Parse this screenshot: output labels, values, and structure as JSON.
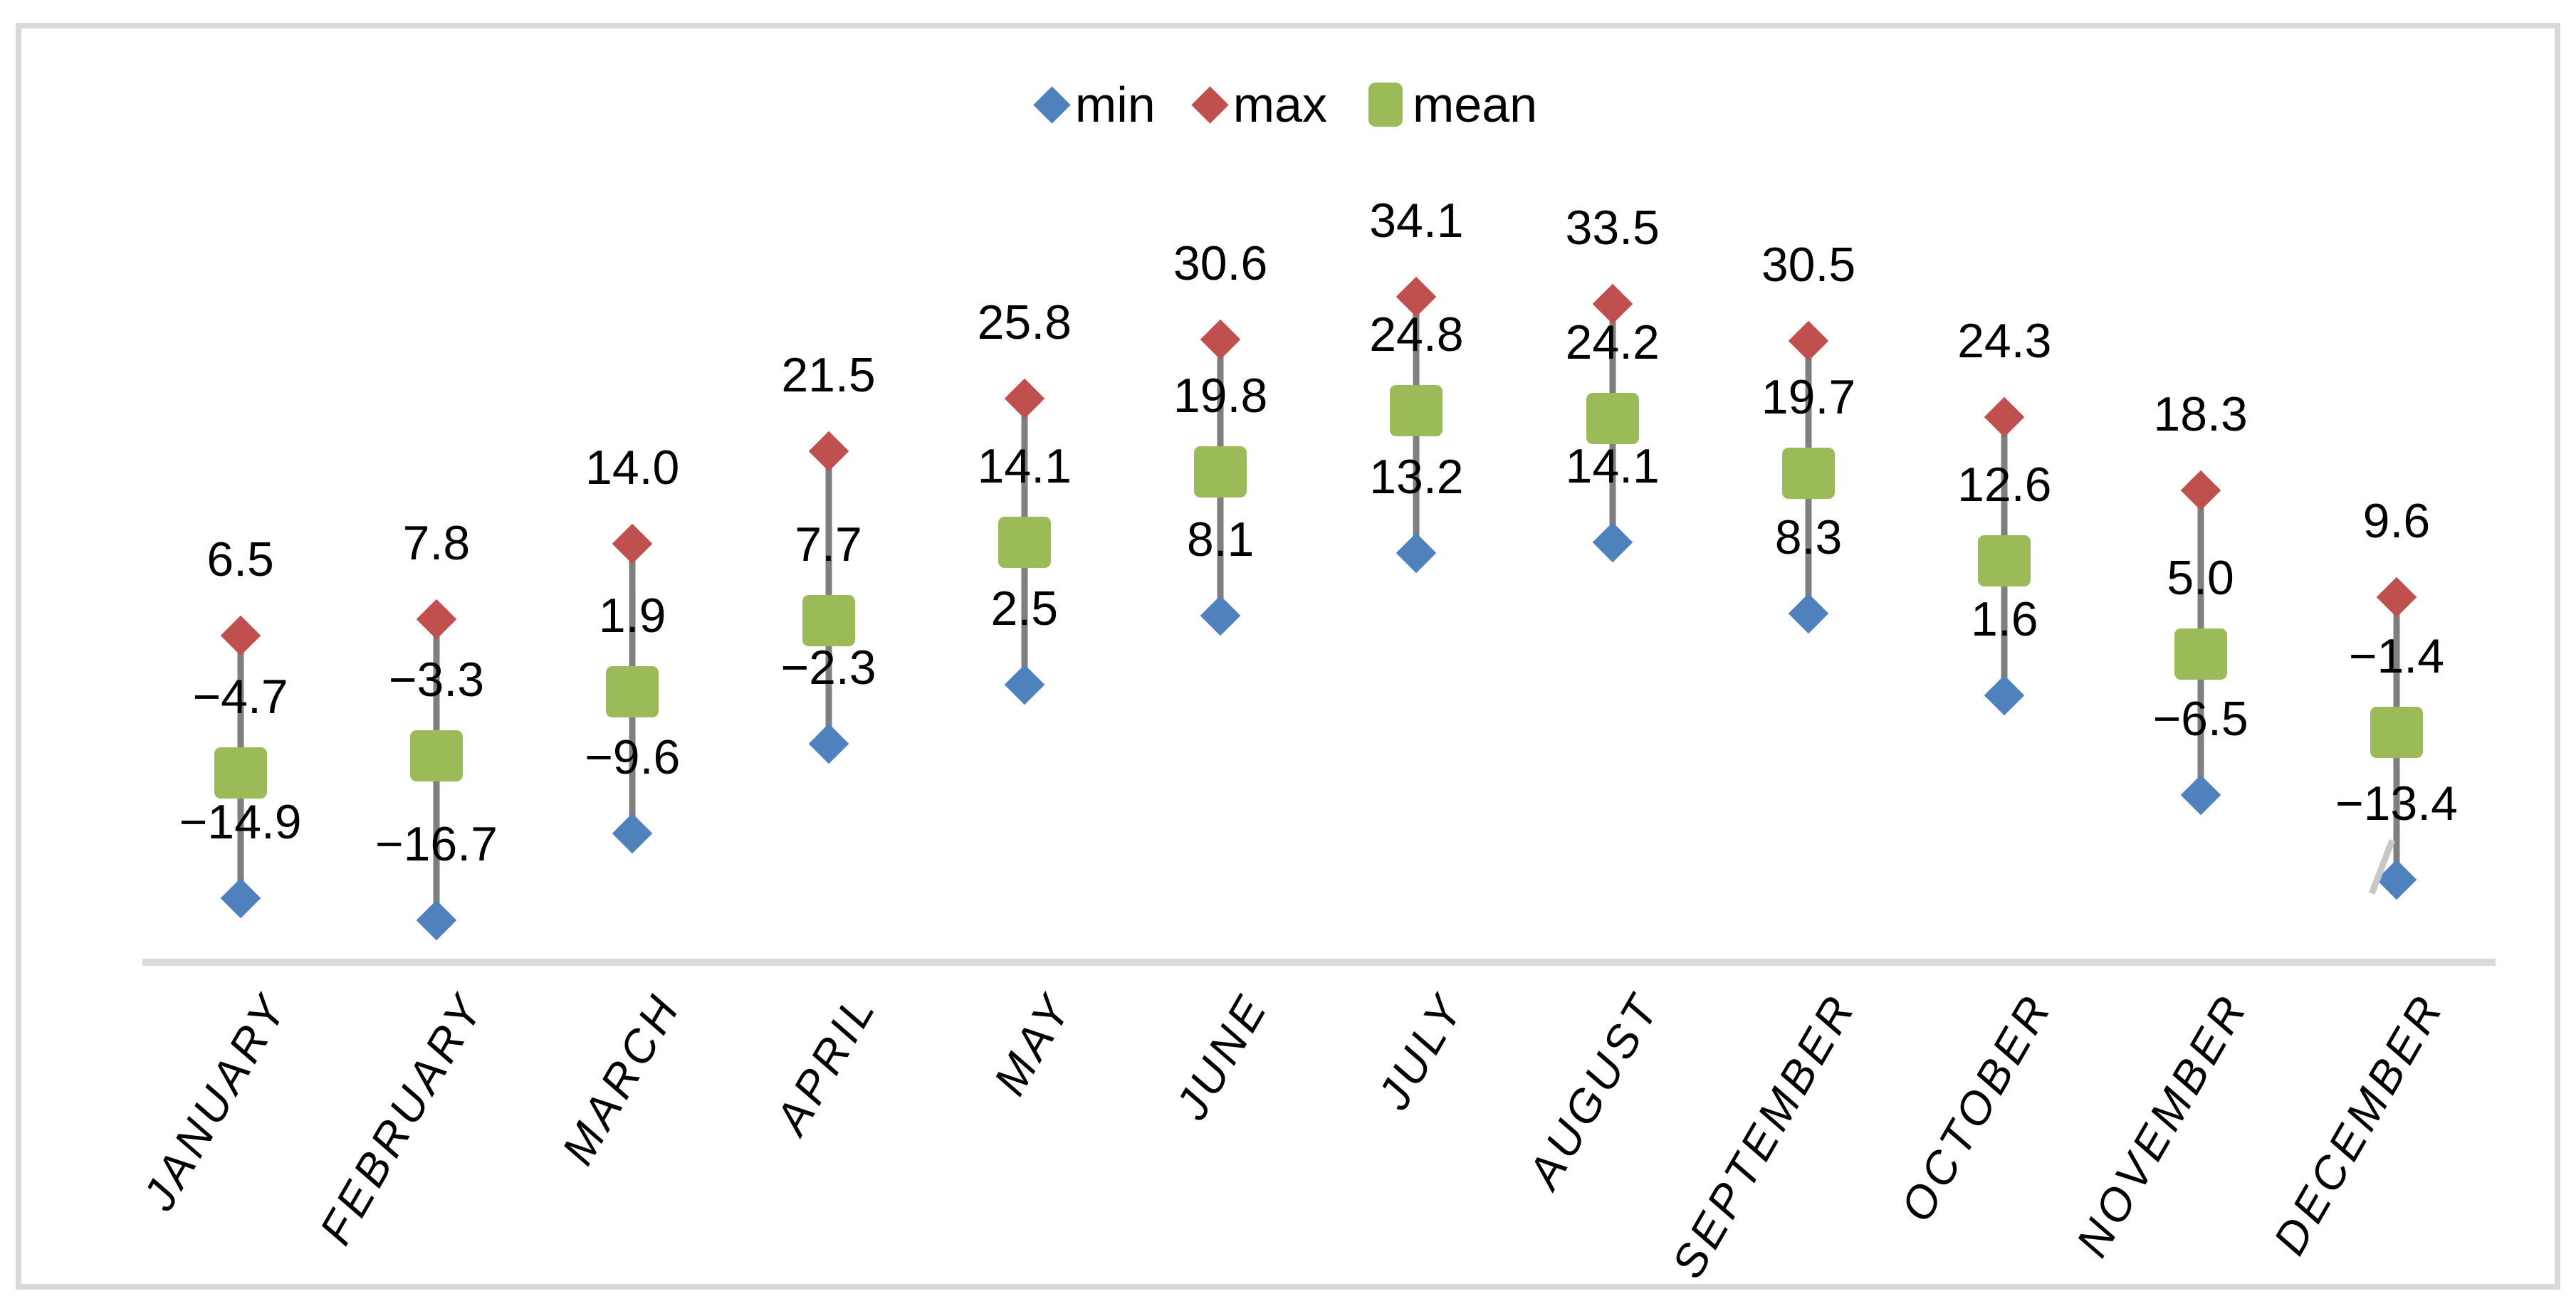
{
  "chart_data": {
    "type": "line",
    "title": "",
    "xlabel": "",
    "ylabel": "",
    "categories": [
      "JANUARY",
      "FEBRUARY",
      "MARCH",
      "APRIL",
      "MAY",
      "JUNE",
      "JULY",
      "AUGUST",
      "SEPTEMBER",
      "OCTOBER",
      "NOVEMBER",
      "DECEMBER"
    ],
    "series": [
      {
        "name": "min",
        "marker": "diamond",
        "color": "#4f81bd",
        "values": [
          -14.9,
          -16.7,
          -9.6,
          -2.3,
          2.5,
          8.1,
          13.2,
          14.1,
          8.3,
          1.6,
          -6.5,
          -13.4
        ]
      },
      {
        "name": "max",
        "marker": "diamond",
        "color": "#c0504d",
        "values": [
          6.5,
          7.8,
          14.0,
          21.5,
          25.8,
          30.6,
          34.1,
          33.5,
          30.5,
          24.3,
          18.3,
          9.6
        ]
      },
      {
        "name": "mean",
        "marker": "square",
        "color": "#9bbb59",
        "values": [
          -4.7,
          -3.3,
          1.9,
          7.7,
          14.1,
          19.8,
          24.8,
          24.2,
          19.7,
          12.6,
          5.0,
          -1.4
        ]
      }
    ],
    "data_labels": true,
    "label_decimals": 1,
    "legend_position": "top",
    "legend_entries": [
      "min",
      "max",
      "mean"
    ],
    "grid": false,
    "ylim": [
      -20,
      40
    ],
    "stem_color": "#7f7f7f",
    "axis_line_color": "#d9d9d9",
    "frame_color": "#d9d9d9",
    "background_color": "#ffffff",
    "label_color": "#000000"
  }
}
